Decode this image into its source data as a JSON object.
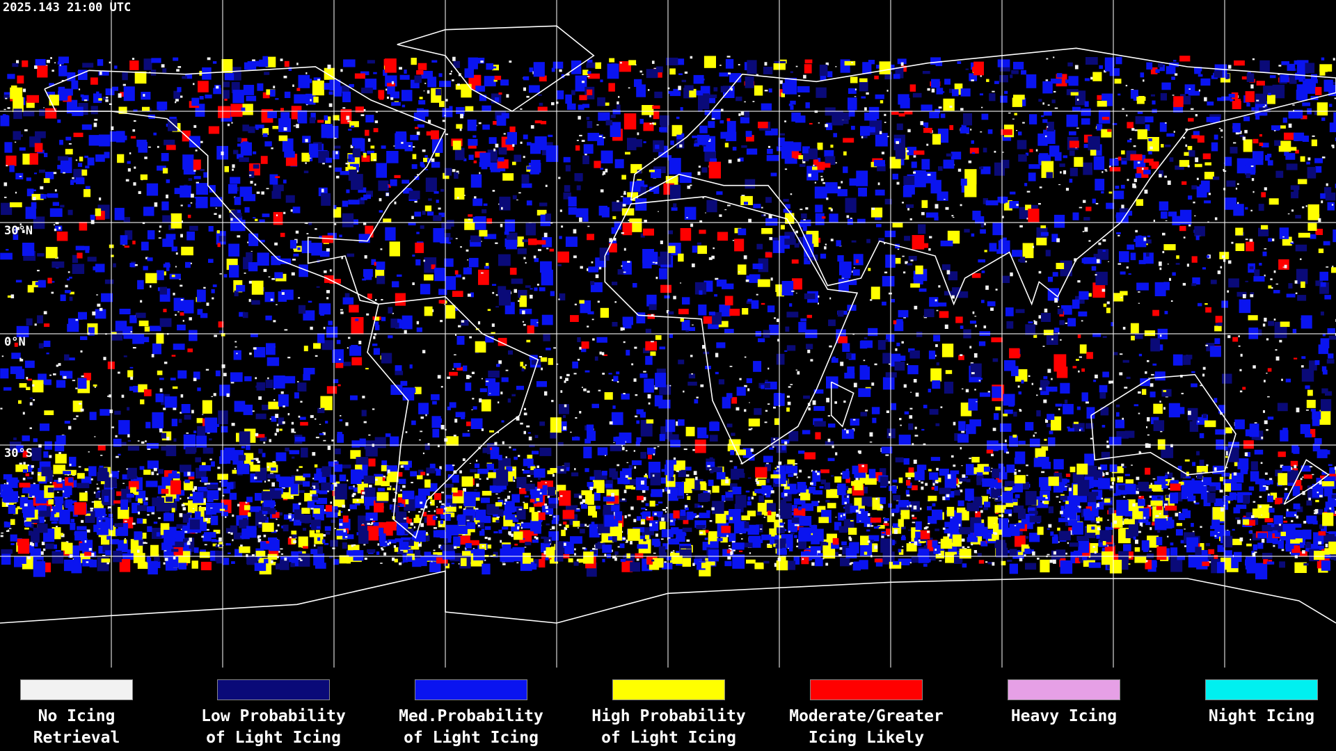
{
  "header": {
    "timestamp": "2025.143 21:00 UTC"
  },
  "map": {
    "latitude_labels": [
      "30°N",
      "0°N",
      "30°S"
    ]
  },
  "legend": [
    {
      "color": "#f2f2f2",
      "label_lines": [
        "No Icing",
        "Retrieval"
      ]
    },
    {
      "color": "#0a0a78",
      "label_lines": [
        "Low Probability",
        "of Light Icing"
      ]
    },
    {
      "color": "#0a14f0",
      "label_lines": [
        "Med.Probability",
        "of Light Icing"
      ]
    },
    {
      "color": "#ffff00",
      "label_lines": [
        "High Probability",
        "of Light Icing"
      ]
    },
    {
      "color": "#ff0000",
      "label_lines": [
        "Moderate/Greater",
        "Icing Likely"
      ]
    },
    {
      "color": "#e6a0e6",
      "label_lines": [
        "Heavy Icing"
      ]
    },
    {
      "color": "#00f0f0",
      "label_lines": [
        "Night Icing"
      ]
    }
  ]
}
